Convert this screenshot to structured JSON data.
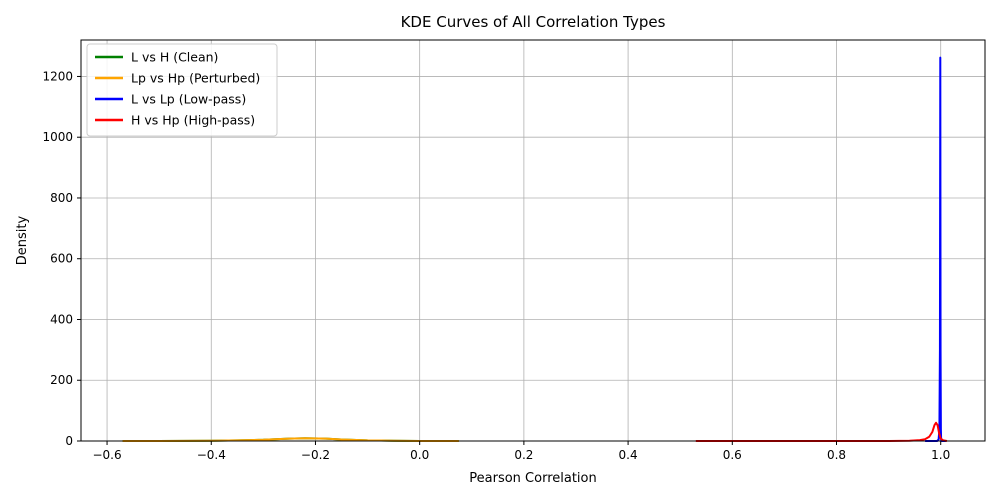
{
  "chart_data": {
    "type": "line",
    "title": "KDE Curves of All Correlation Types",
    "xlabel": "Pearson Correlation",
    "ylabel": "Density",
    "xlim": [
      -0.65,
      1.085
    ],
    "ylim": [
      0,
      1320
    ],
    "xticks": [
      -0.6,
      -0.4,
      -0.2,
      0.0,
      0.2,
      0.4,
      0.6,
      0.8,
      1.0
    ],
    "xtick_labels": [
      "−0.6",
      "−0.4",
      "−0.2",
      "0.0",
      "0.2",
      "0.4",
      "0.6",
      "0.8",
      "1.0"
    ],
    "yticks": [
      0,
      200,
      400,
      600,
      800,
      1000,
      1200
    ],
    "ytick_labels": [
      "0",
      "200",
      "400",
      "600",
      "800",
      "1000",
      "1200"
    ],
    "grid": true,
    "legend_position": "upper-left",
    "series": [
      {
        "name": "L vs H (Clean)",
        "color": "#008000",
        "x": [
          -0.57,
          -0.5,
          -0.4,
          -0.35,
          -0.3,
          -0.25,
          -0.22,
          -0.18,
          -0.15,
          -0.1,
          -0.05,
          0.0,
          0.075
        ],
        "y": [
          0,
          0,
          1,
          2,
          4,
          8,
          9,
          8,
          5,
          2,
          1,
          0,
          0
        ]
      },
      {
        "name": "Lp vs Hp (Perturbed)",
        "color": "#FFA500",
        "x": [
          -0.57,
          -0.5,
          -0.4,
          -0.35,
          -0.3,
          -0.25,
          -0.22,
          -0.18,
          -0.15,
          -0.1,
          -0.05,
          0.0,
          0.075
        ],
        "y": [
          0,
          0,
          1,
          2,
          4,
          8,
          9,
          8,
          5,
          2,
          1,
          0,
          0
        ]
      },
      {
        "name": "L vs Lp (Low-pass)",
        "color": "#0000FF",
        "x": [
          0.97,
          0.985,
          0.993,
          0.996,
          0.9975,
          0.9985,
          0.9992,
          0.9997,
          1.0003,
          1.0008,
          1.0015,
          1.003,
          1.01
        ],
        "y": [
          0,
          0,
          0,
          5,
          40,
          300,
          1262,
          300,
          40,
          5,
          0,
          0,
          0
        ]
      },
      {
        "name": "H vs Hp (High-pass)",
        "color": "#FF0000",
        "x": [
          0.53,
          0.6,
          0.7,
          0.8,
          0.9,
          0.94,
          0.96,
          0.97,
          0.978,
          0.984,
          0.988,
          0.991,
          0.994,
          0.997,
          1.0,
          1.005,
          1.012
        ],
        "y": [
          0,
          0,
          0,
          0,
          0,
          1,
          3,
          6,
          14,
          30,
          52,
          60,
          52,
          25,
          8,
          2,
          0
        ]
      }
    ]
  }
}
